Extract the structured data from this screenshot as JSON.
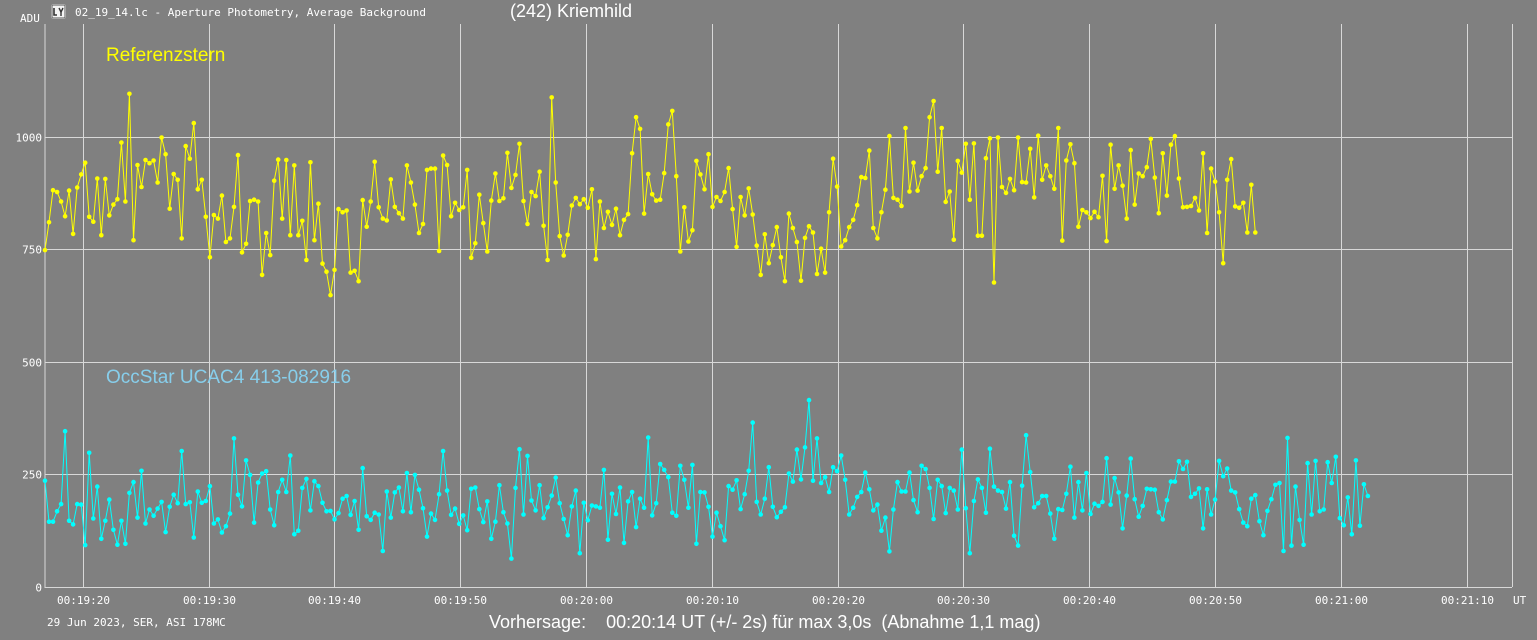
{
  "header": {
    "file_title": "02_19_14.lc - Aperture Photometry, Average Background",
    "object_title": "(242) Kriemhild",
    "app_icon": "light-curve-app-icon"
  },
  "footer": {
    "observation_info": "29 Jun 2023, SER, ASI 178MC",
    "prediction": "Vorhersage:    00:20:14 UT (+/- 2s) für max 3,0s  (Abnahme 1,1 mag)"
  },
  "chart_data": {
    "type": "line",
    "xlabel": "UT",
    "ylabel": "ADU",
    "ylim": [
      0,
      1250
    ],
    "xlim": [
      "00:19:17.0",
      "00:21:13.6"
    ],
    "yticks": [
      0,
      250,
      500,
      750,
      1000
    ],
    "xticks": [
      "00:19:20",
      "00:19:30",
      "00:19:40",
      "00:19:50",
      "00:20:00",
      "00:20:10",
      "00:20:20",
      "00:20:30",
      "00:20:40",
      "00:20:50",
      "00:21:00",
      "00:21:10"
    ],
    "grid": true,
    "x_start": "00:19:17.0",
    "sample_interval_s": 0.3196,
    "colors": {
      "Referenzstern": "#ffff00",
      "OccStar UCAC4 413-082916": "#00ffff"
    },
    "series": [
      {
        "name": "Referenzstern",
        "label_color": "#ffff00",
        "values": [
          748,
          810,
          881,
          877,
          856,
          823,
          880,
          784,
          887,
          916,
          942,
          822,
          811,
          907,
          781,
          906,
          825,
          849,
          861,
          987,
          856,
          1095,
          770,
          937,
          888,
          948,
          941,
          947,
          898,
          998,
          961,
          840,
          917,
          904,
          774,
          979,
          951,
          1030,
          883,
          904,
          822,
          732,
          826,
          818,
          869,
          766,
          774,
          844,
          959,
          743,
          762,
          857,
          860,
          856,
          693,
          786,
          737,
          902,
          949,
          818,
          948,
          781,
          936,
          781,
          813,
          726,
          943,
          770,
          851,
          718,
          700,
          648,
          704,
          839,
          832,
          836,
          698,
          702,
          679,
          859,
          800,
          856,
          944,
          843,
          818,
          814,
          905,
          844,
          830,
          818,
          936,
          898,
          849,
          786,
          806,
          926,
          929,
          929,
          746,
          958,
          937,
          823,
          853,
          837,
          843,
          926,
          731,
          763,
          871,
          808,
          745,
          858,
          918,
          857,
          863,
          964,
          886,
          915,
          984,
          857,
          806,
          877,
          868,
          922,
          802,
          726,
          1087,
          898,
          779,
          736,
          782,
          847,
          864,
          850,
          861,
          842,
          883,
          728,
          856,
          797,
          833,
          804,
          840,
          781,
          815,
          828,
          963,
          1043,
          1017,
          829,
          917,
          872,
          858,
          860,
          919,
          1027,
          1057,
          912,
          745,
          843,
          767,
          792,
          946,
          916,
          883,
          961,
          844,
          866,
          857,
          877,
          930,
          839,
          755,
          866,
          825,
          885,
          827,
          758,
          693,
          783,
          719,
          759,
          799,
          732,
          679,
          829,
          797,
          766,
          680,
          775,
          801,
          787,
          695,
          751,
          698,
          832,
          951,
          889,
          756,
          770,
          799,
          815,
          848,
          910,
          908,
          969,
          797,
          774,
          832,
          882,
          1001,
          864,
          860,
          846,
          1019,
          878,
          942,
          880,
          912,
          930,
          1043,
          1079,
          922,
          1019,
          855,
          878,
          771,
          946,
          920,
          984,
          860,
          985,
          780,
          780,
          952,
          996,
          676,
          998,
          888,
          875,
          906,
          881,
          998,
          899,
          898,
          973,
          865,
          1002,
          904,
          936,
          912,
          884,
          1019,
          769,
          947,
          983,
          941,
          800,
          837,
          832,
          819,
          833,
          821,
          913,
          768,
          982,
          884,
          936,
          891,
          818,
          970,
          849,
          918,
          912,
          932,
          995,
          909,
          830,
          963,
          869,
          982,
          1001,
          907,
          843,
          844,
          846,
          864,
          836,
          963,
          786,
          929,
          900,
          832,
          719,
          904,
          950,
          845,
          842,
          853,
          787,
          893,
          787
        ]
      },
      {
        "name": "OccStar UCAC4 413-082916",
        "label_color": "#87ceeb",
        "values": [
          236,
          145,
          145,
          168,
          184,
          346,
          147,
          139,
          184,
          183,
          93,
          298,
          152,
          223,
          107,
          147,
          194,
          127,
          94,
          147,
          96,
          209,
          233,
          154,
          258,
          141,
          172,
          158,
          174,
          189,
          122,
          178,
          205,
          186,
          302,
          184,
          188,
          110,
          212,
          187,
          191,
          224,
          141,
          150,
          121,
          135,
          163,
          330,
          205,
          179,
          281,
          249,
          143,
          232,
          252,
          257,
          172,
          137,
          211,
          238,
          211,
          292,
          117,
          125,
          220,
          240,
          170,
          235,
          224,
          187,
          168,
          169,
          150,
          164,
          196,
          202,
          160,
          191,
          127,
          264,
          157,
          149,
          165,
          161,
          80,
          212,
          154,
          210,
          221,
          168,
          253,
          166,
          249,
          216,
          175,
          112,
          163,
          149,
          206,
          302,
          214,
          160,
          174,
          140,
          159,
          126,
          218,
          221,
          173,
          144,
          190,
          107,
          145,
          226,
          166,
          141,
          63,
          220,
          306,
          161,
          291,
          192,
          170,
          226,
          153,
          177,
          203,
          243,
          186,
          151,
          115,
          179,
          214,
          75,
          187,
          148,
          181,
          179,
          176,
          260,
          105,
          207,
          162,
          221,
          98,
          190,
          211,
          133,
          196,
          176,
          332,
          159,
          186,
          273,
          260,
          244,
          165,
          158,
          269,
          238,
          176,
          271,
          96,
          211,
          210,
          178,
          112,
          165,
          135,
          104,
          224,
          216,
          237,
          173,
          206,
          258,
          365,
          189,
          161,
          196,
          266,
          178,
          155,
          167,
          177,
          252,
          234,
          305,
          239,
          310,
          415,
          236,
          330,
          231,
          244,
          211,
          266,
          257,
          292,
          238,
          161,
          176,
          200,
          211,
          254,
          217,
          170,
          183,
          125,
          154,
          79,
          172,
          233,
          212,
          212,
          254,
          193,
          166,
          269,
          262,
          220,
          151,
          238,
          224,
          164,
          220,
          214,
          172,
          305,
          175,
          75,
          191,
          239,
          220,
          165,
          307,
          223,
          214,
          211,
          174,
          233,
          114,
          92,
          225,
          337,
          255,
          177,
          186,
          202,
          202,
          163,
          107,
          173,
          171,
          207,
          267,
          154,
          233,
          170,
          253,
          162,
          185,
          180,
          189,
          286,
          183,
          242,
          210,
          130,
          203,
          285,
          195,
          156,
          180,
          218,
          217,
          216,
          166,
          150,
          193,
          234,
          234,
          279,
          262,
          278,
          200,
          207,
          219,
          130,
          217,
          161,
          194,
          280,
          246,
          263,
          214,
          210,
          173,
          143,
          135,
          196,
          204,
          146,
          115,
          169,
          195,
          227,
          231,
          80,
          331,
          92,
          223,
          149,
          94,
          275,
          161,
          280,
          168,
          172,
          277,
          231,
          289,
          153,
          137,
          199,
          117,
          281,
          136,
          228,
          202
        ]
      }
    ]
  }
}
